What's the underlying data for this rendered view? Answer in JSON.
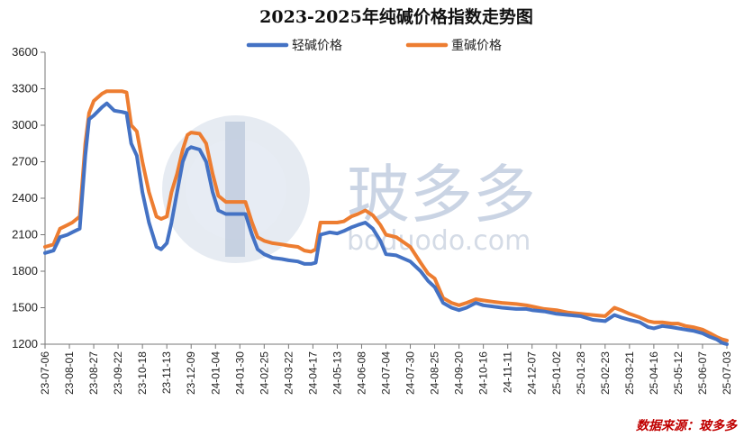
{
  "chart_data": {
    "type": "line",
    "title": "2023-2025年纯碱价格指数走势图",
    "xlabel": "",
    "ylabel": "",
    "ylim": [
      1200,
      3600
    ],
    "yticks": [
      1200,
      1500,
      1800,
      2100,
      2400,
      2700,
      3000,
      3300,
      3600
    ],
    "xlim": [
      "2023-07-06",
      "2025-07-03"
    ],
    "legend_position": "top-center",
    "grid": false,
    "x_tick_labels": [
      "23-07-06",
      "23-08-01",
      "23-08-27",
      "23-09-22",
      "23-10-18",
      "23-11-13",
      "23-12-09",
      "24-01-04",
      "24-01-30",
      "24-02-25",
      "24-03-22",
      "24-04-17",
      "24-05-13",
      "24-06-08",
      "24-07-04",
      "24-07-30",
      "24-08-25",
      "24-09-20",
      "24-10-16",
      "24-11-11",
      "24-12-07",
      "25-01-02",
      "25-01-28",
      "25-02-23",
      "25-03-21",
      "25-04-16",
      "25-05-12",
      "25-06-07",
      "25-07-03"
    ],
    "series": [
      {
        "name": "轻碱价格",
        "color": "#4472C4",
        "points": [
          [
            "2023-07-06",
            1950
          ],
          [
            "2023-07-15",
            1970
          ],
          [
            "2023-07-22",
            2080
          ],
          [
            "2023-07-30",
            2100
          ],
          [
            "2023-08-04",
            2120
          ],
          [
            "2023-08-12",
            2150
          ],
          [
            "2023-08-18",
            2750
          ],
          [
            "2023-08-22",
            3050
          ],
          [
            "2023-08-27",
            3080
          ],
          [
            "2023-09-05",
            3150
          ],
          [
            "2023-09-10",
            3180
          ],
          [
            "2023-09-18",
            3120
          ],
          [
            "2023-09-26",
            3110
          ],
          [
            "2023-10-01",
            3100
          ],
          [
            "2023-10-06",
            2850
          ],
          [
            "2023-10-12",
            2750
          ],
          [
            "2023-10-18",
            2450
          ],
          [
            "2023-10-25",
            2200
          ],
          [
            "2023-11-02",
            2000
          ],
          [
            "2023-11-07",
            1980
          ],
          [
            "2023-11-13",
            2030
          ],
          [
            "2023-11-18",
            2200
          ],
          [
            "2023-11-24",
            2450
          ],
          [
            "2023-11-30",
            2700
          ],
          [
            "2023-12-05",
            2800
          ],
          [
            "2023-12-09",
            2820
          ],
          [
            "2023-12-18",
            2800
          ],
          [
            "2023-12-25",
            2700
          ],
          [
            "2024-01-01",
            2450
          ],
          [
            "2024-01-07",
            2300
          ],
          [
            "2024-01-15",
            2270
          ],
          [
            "2024-01-30",
            2270
          ],
          [
            "2024-02-05",
            2270
          ],
          [
            "2024-02-12",
            2100
          ],
          [
            "2024-02-18",
            1980
          ],
          [
            "2024-02-25",
            1940
          ],
          [
            "2024-03-05",
            1910
          ],
          [
            "2024-03-15",
            1900
          ],
          [
            "2024-03-22",
            1890
          ],
          [
            "2024-04-01",
            1880
          ],
          [
            "2024-04-08",
            1860
          ],
          [
            "2024-04-15",
            1860
          ],
          [
            "2024-04-20",
            1870
          ],
          [
            "2024-04-25",
            2100
          ],
          [
            "2024-05-05",
            2120
          ],
          [
            "2024-05-13",
            2110
          ],
          [
            "2024-05-20",
            2130
          ],
          [
            "2024-05-28",
            2160
          ],
          [
            "2024-06-04",
            2180
          ],
          [
            "2024-06-12",
            2200
          ],
          [
            "2024-06-20",
            2150
          ],
          [
            "2024-06-28",
            2050
          ],
          [
            "2024-07-04",
            1940
          ],
          [
            "2024-07-15",
            1930
          ],
          [
            "2024-07-30",
            1880
          ],
          [
            "2024-08-10",
            1800
          ],
          [
            "2024-08-18",
            1720
          ],
          [
            "2024-08-25",
            1670
          ],
          [
            "2024-09-03",
            1540
          ],
          [
            "2024-09-12",
            1500
          ],
          [
            "2024-09-20",
            1480
          ],
          [
            "2024-09-28",
            1500
          ],
          [
            "2024-10-08",
            1540
          ],
          [
            "2024-10-16",
            1520
          ],
          [
            "2024-10-26",
            1510
          ],
          [
            "2024-11-05",
            1500
          ],
          [
            "2024-11-20",
            1490
          ],
          [
            "2024-12-01",
            1490
          ],
          [
            "2024-12-07",
            1480
          ],
          [
            "2024-12-20",
            1470
          ],
          [
            "2025-01-02",
            1450
          ],
          [
            "2025-01-15",
            1440
          ],
          [
            "2025-01-28",
            1430
          ],
          [
            "2025-02-10",
            1400
          ],
          [
            "2025-02-23",
            1390
          ],
          [
            "2025-03-05",
            1440
          ],
          [
            "2025-03-12",
            1420
          ],
          [
            "2025-03-21",
            1400
          ],
          [
            "2025-04-01",
            1380
          ],
          [
            "2025-04-10",
            1340
          ],
          [
            "2025-04-16",
            1330
          ],
          [
            "2025-04-25",
            1350
          ],
          [
            "2025-05-05",
            1340
          ],
          [
            "2025-05-12",
            1330
          ],
          [
            "2025-05-20",
            1320
          ],
          [
            "2025-05-28",
            1310
          ],
          [
            "2025-06-07",
            1290
          ],
          [
            "2025-06-15",
            1260
          ],
          [
            "2025-06-22",
            1240
          ],
          [
            "2025-06-28",
            1210
          ],
          [
            "2025-07-03",
            1200
          ]
        ]
      },
      {
        "name": "重碱价格",
        "color": "#ED7D31",
        "points": [
          [
            "2023-07-06",
            2000
          ],
          [
            "2023-07-15",
            2020
          ],
          [
            "2023-07-22",
            2150
          ],
          [
            "2023-07-30",
            2180
          ],
          [
            "2023-08-04",
            2200
          ],
          [
            "2023-08-12",
            2250
          ],
          [
            "2023-08-18",
            2850
          ],
          [
            "2023-08-22",
            3100
          ],
          [
            "2023-08-27",
            3200
          ],
          [
            "2023-09-05",
            3260
          ],
          [
            "2023-09-10",
            3280
          ],
          [
            "2023-09-18",
            3280
          ],
          [
            "2023-09-26",
            3280
          ],
          [
            "2023-10-01",
            3270
          ],
          [
            "2023-10-06",
            3000
          ],
          [
            "2023-10-12",
            2950
          ],
          [
            "2023-10-18",
            2700
          ],
          [
            "2023-10-25",
            2450
          ],
          [
            "2023-11-02",
            2250
          ],
          [
            "2023-11-07",
            2230
          ],
          [
            "2023-11-13",
            2250
          ],
          [
            "2023-11-18",
            2450
          ],
          [
            "2023-11-24",
            2600
          ],
          [
            "2023-11-30",
            2800
          ],
          [
            "2023-12-05",
            2920
          ],
          [
            "2023-12-09",
            2940
          ],
          [
            "2023-12-18",
            2930
          ],
          [
            "2023-12-25",
            2850
          ],
          [
            "2024-01-01",
            2600
          ],
          [
            "2024-01-07",
            2420
          ],
          [
            "2024-01-15",
            2370
          ],
          [
            "2024-01-30",
            2370
          ],
          [
            "2024-02-05",
            2370
          ],
          [
            "2024-02-12",
            2200
          ],
          [
            "2024-02-18",
            2080
          ],
          [
            "2024-02-25",
            2050
          ],
          [
            "2024-03-05",
            2030
          ],
          [
            "2024-03-15",
            2020
          ],
          [
            "2024-03-22",
            2010
          ],
          [
            "2024-04-01",
            2000
          ],
          [
            "2024-04-08",
            1970
          ],
          [
            "2024-04-15",
            1960
          ],
          [
            "2024-04-20",
            1980
          ],
          [
            "2024-04-25",
            2200
          ],
          [
            "2024-05-05",
            2200
          ],
          [
            "2024-05-13",
            2200
          ],
          [
            "2024-05-20",
            2210
          ],
          [
            "2024-05-28",
            2250
          ],
          [
            "2024-06-04",
            2270
          ],
          [
            "2024-06-12",
            2300
          ],
          [
            "2024-06-20",
            2260
          ],
          [
            "2024-06-28",
            2180
          ],
          [
            "2024-07-04",
            2100
          ],
          [
            "2024-07-15",
            2080
          ],
          [
            "2024-07-30",
            2000
          ],
          [
            "2024-08-10",
            1870
          ],
          [
            "2024-08-18",
            1780
          ],
          [
            "2024-08-25",
            1740
          ],
          [
            "2024-09-03",
            1580
          ],
          [
            "2024-09-12",
            1540
          ],
          [
            "2024-09-20",
            1520
          ],
          [
            "2024-09-28",
            1540
          ],
          [
            "2024-10-08",
            1570
          ],
          [
            "2024-10-16",
            1560
          ],
          [
            "2024-10-26",
            1550
          ],
          [
            "2024-11-05",
            1540
          ],
          [
            "2024-11-20",
            1530
          ],
          [
            "2024-12-01",
            1520
          ],
          [
            "2024-12-07",
            1510
          ],
          [
            "2024-12-20",
            1490
          ],
          [
            "2025-01-02",
            1480
          ],
          [
            "2025-01-15",
            1460
          ],
          [
            "2025-01-28",
            1450
          ],
          [
            "2025-02-10",
            1440
          ],
          [
            "2025-02-23",
            1430
          ],
          [
            "2025-03-05",
            1500
          ],
          [
            "2025-03-12",
            1480
          ],
          [
            "2025-03-21",
            1450
          ],
          [
            "2025-04-01",
            1420
          ],
          [
            "2025-04-10",
            1390
          ],
          [
            "2025-04-16",
            1380
          ],
          [
            "2025-04-25",
            1380
          ],
          [
            "2025-05-05",
            1370
          ],
          [
            "2025-05-12",
            1370
          ],
          [
            "2025-05-20",
            1350
          ],
          [
            "2025-05-28",
            1340
          ],
          [
            "2025-06-07",
            1320
          ],
          [
            "2025-06-15",
            1290
          ],
          [
            "2025-06-22",
            1260
          ],
          [
            "2025-06-28",
            1240
          ],
          [
            "2025-07-03",
            1230
          ]
        ]
      }
    ]
  },
  "watermark": {
    "brand": "玻多多",
    "url": "boduodo.com",
    "logo_color": "#8aa6d0"
  },
  "source_note": "数据来源：玻多多"
}
